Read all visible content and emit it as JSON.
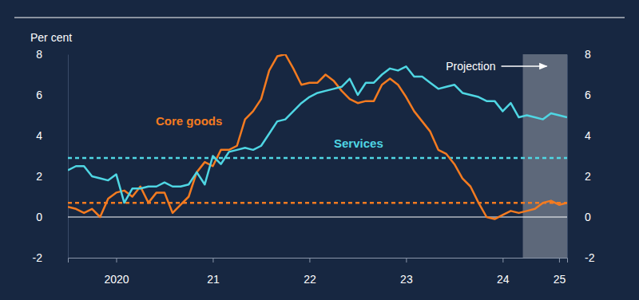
{
  "chart_data": {
    "type": "line",
    "y_label": "Per cent",
    "categories": [
      null,
      null,
      null,
      null,
      null,
      null,
      "2020",
      null,
      null,
      null,
      null,
      null,
      null,
      null,
      null,
      null,
      null,
      null,
      "21",
      null,
      null,
      null,
      null,
      null,
      null,
      null,
      null,
      null,
      null,
      null,
      "22",
      null,
      null,
      null,
      null,
      null,
      null,
      null,
      null,
      null,
      null,
      null,
      "23",
      null,
      null,
      null,
      null,
      null,
      null,
      null,
      null,
      null,
      null,
      null,
      "24",
      null,
      null,
      null,
      null,
      null,
      null,
      "25",
      null
    ],
    "series": [
      {
        "name": "Core goods",
        "color": "#f47b20",
        "line_style": "solid",
        "values": [
          0.5,
          0.4,
          0.2,
          0.4,
          0.0,
          0.9,
          1.2,
          1.3,
          1.0,
          1.5,
          0.7,
          1.2,
          1.2,
          0.2,
          0.6,
          1.0,
          2.2,
          2.7,
          2.5,
          3.3,
          3.3,
          3.5,
          4.8,
          5.2,
          5.8,
          7.2,
          7.9,
          8.0,
          7.3,
          6.5,
          6.6,
          6.6,
          7.0,
          6.7,
          6.2,
          5.8,
          5.6,
          5.7,
          5.7,
          6.5,
          6.8,
          6.5,
          5.9,
          5.2,
          4.7,
          4.2,
          3.3,
          3.1,
          2.6,
          1.9,
          1.5,
          0.7,
          0.0,
          -0.1,
          0.1,
          0.3,
          0.2,
          0.3,
          0.4,
          0.7,
          0.8,
          0.6,
          0.7
        ]
      },
      {
        "name": "Services",
        "color": "#4fd6e3",
        "line_style": "solid",
        "values": [
          2.3,
          2.5,
          2.5,
          2.0,
          1.9,
          1.8,
          2.1,
          0.7,
          1.4,
          1.4,
          1.5,
          1.5,
          1.7,
          1.5,
          1.5,
          1.6,
          2.2,
          1.6,
          3.0,
          2.6,
          3.2,
          3.3,
          3.4,
          3.3,
          3.5,
          4.1,
          4.7,
          4.8,
          5.2,
          5.6,
          5.9,
          6.1,
          6.2,
          6.3,
          6.4,
          6.8,
          6.0,
          6.6,
          6.6,
          7.0,
          7.3,
          7.2,
          7.4,
          6.9,
          6.9,
          6.6,
          6.3,
          6.4,
          6.5,
          6.1,
          6.0,
          5.9,
          5.7,
          5.7,
          5.2,
          5.6,
          4.9,
          5.0,
          4.9,
          4.8,
          5.1,
          5.0,
          4.9
        ]
      }
    ],
    "reference_lines": [
      {
        "value": 2.9,
        "color": "#4fd6e3",
        "line_style": "dashed"
      },
      {
        "value": 0.7,
        "color": "#f47b20",
        "line_style": "dashed"
      }
    ],
    "annotations": [
      {
        "text": "Projection",
        "x_start": 56.5,
        "x_end": 62
      }
    ],
    "ylim": [
      -2,
      8
    ],
    "yticks": [
      -2,
      0,
      2,
      4,
      6,
      8
    ],
    "y2lim": [
      -2,
      8
    ],
    "y2ticks": [
      -2,
      0,
      2,
      4,
      6,
      8
    ],
    "grid": false
  }
}
